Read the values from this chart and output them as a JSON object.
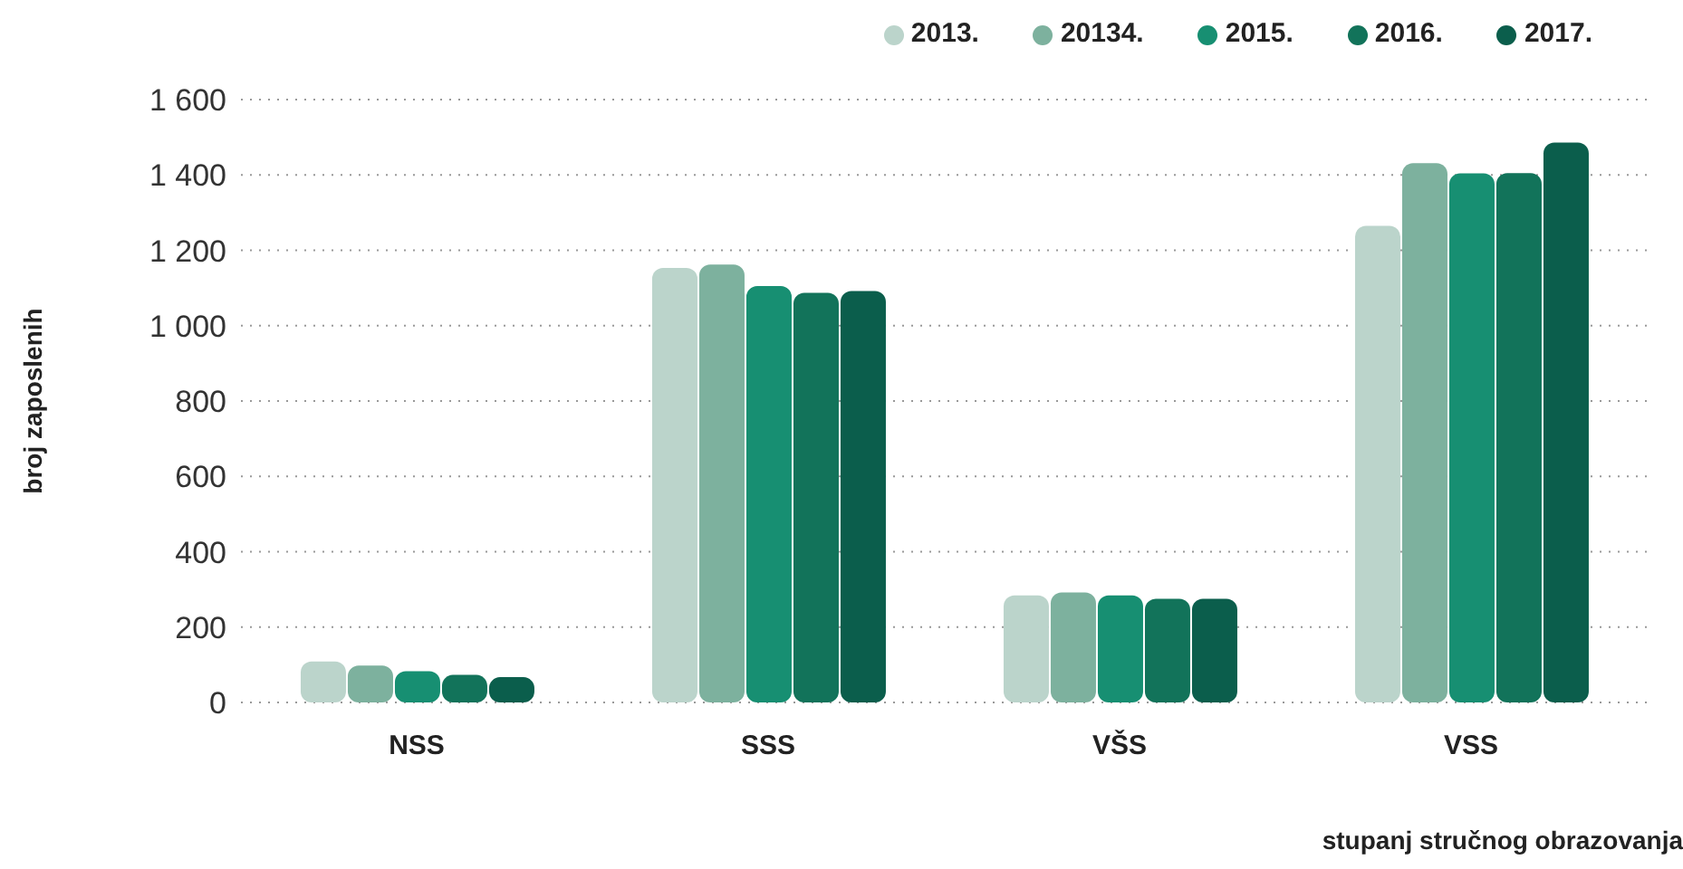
{
  "chart_data": {
    "type": "bar",
    "xlabel": "stupanj stručnog obrazovanja",
    "ylabel": "broj zaposlenih",
    "categories": [
      "NSS",
      "SSS",
      "VŠS",
      "VSS"
    ],
    "series": [
      {
        "name": "2013.",
        "color": "#bbd4cb",
        "values": [
          109,
          1153,
          284,
          1265
        ]
      },
      {
        "name": "20134.",
        "color": "#7db19e",
        "values": [
          98,
          1162,
          292,
          1431
        ]
      },
      {
        "name": "2015.",
        "color": "#178f72",
        "values": [
          83,
          1105,
          284,
          1404
        ]
      },
      {
        "name": "2016.",
        "color": "#12735a",
        "values": [
          73,
          1087,
          275,
          1405
        ]
      },
      {
        "name": "2017.",
        "color": "#0b5e4c",
        "values": [
          67,
          1092,
          275,
          1486
        ]
      }
    ],
    "ylim": [
      0,
      1600
    ],
    "yticks": [
      0,
      200,
      400,
      600,
      800,
      {
        "value": 1000,
        "label": "1 000"
      },
      {
        "value": 1200,
        "label": "1 200"
      },
      {
        "value": 1400,
        "label": "1 400"
      },
      {
        "value": 1600,
        "label": "1 600"
      }
    ],
    "grid": "y",
    "legend": "top right"
  }
}
